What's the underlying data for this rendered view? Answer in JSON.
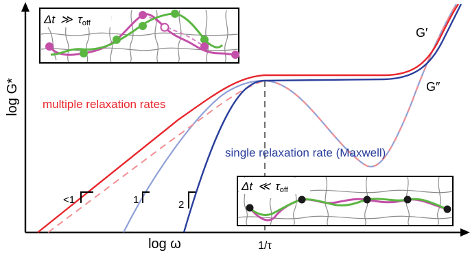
{
  "axes": {
    "xlabel": "log ω",
    "ylabel": "log G*",
    "xtick": "1/τ"
  },
  "curves": {
    "g_prime": "G′",
    "g_double_prime": "G″"
  },
  "annotations": {
    "multiple": "multiple relaxation rates",
    "single": "single relaxation rate (Maxwell)",
    "slope_lt1": "<1",
    "slope_1": "1",
    "slope_2": "2"
  },
  "insets": {
    "long_time": {
      "delta": "Δt",
      "relation": "≫",
      "tau": "τ",
      "tau_sub": "off"
    },
    "short_time": {
      "delta": "Δt",
      "relation": "≪",
      "tau": "τ",
      "tau_sub": "off"
    }
  },
  "colors": {
    "multiple": "#e8262c",
    "multiple_dashed": "#f08f92",
    "single": "#2a3f9c",
    "single_dashed": "#8fa0d6",
    "polymer_pink": "#c44fa8",
    "polymer_green": "#5ab641",
    "crosslink": "#1a1a1a",
    "network": "#8a8a8a"
  }
}
